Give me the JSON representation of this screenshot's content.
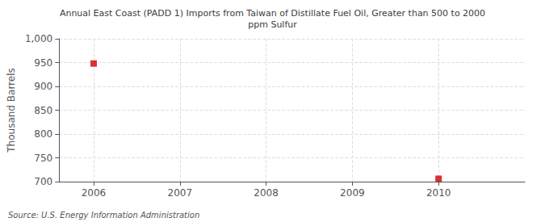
{
  "chart_data": {
    "type": "scatter",
    "title": "Annual East Coast (PADD 1) Imports from Taiwan of Distillate Fuel Oil, Greater than 500 to 2000\nppm Sulfur",
    "y_label": "Thousand Barrels",
    "annotations": [
      "Source: U.S. Energy Information Administration"
    ],
    "x": [
      2006,
      2010
    ],
    "values": [
      948,
      706
    ],
    "color": "#cc0000",
    "marker": "square",
    "xlim": [
      2005.6,
      2011.0
    ],
    "xticks": [
      2006,
      2007,
      2008,
      2009,
      2010
    ],
    "ylim": [
      700,
      1000
    ],
    "yticks": [
      700,
      750,
      800,
      850,
      900,
      950,
      {
        "value": 1000,
        "label": "1,000"
      }
    ],
    "grid": true
  }
}
